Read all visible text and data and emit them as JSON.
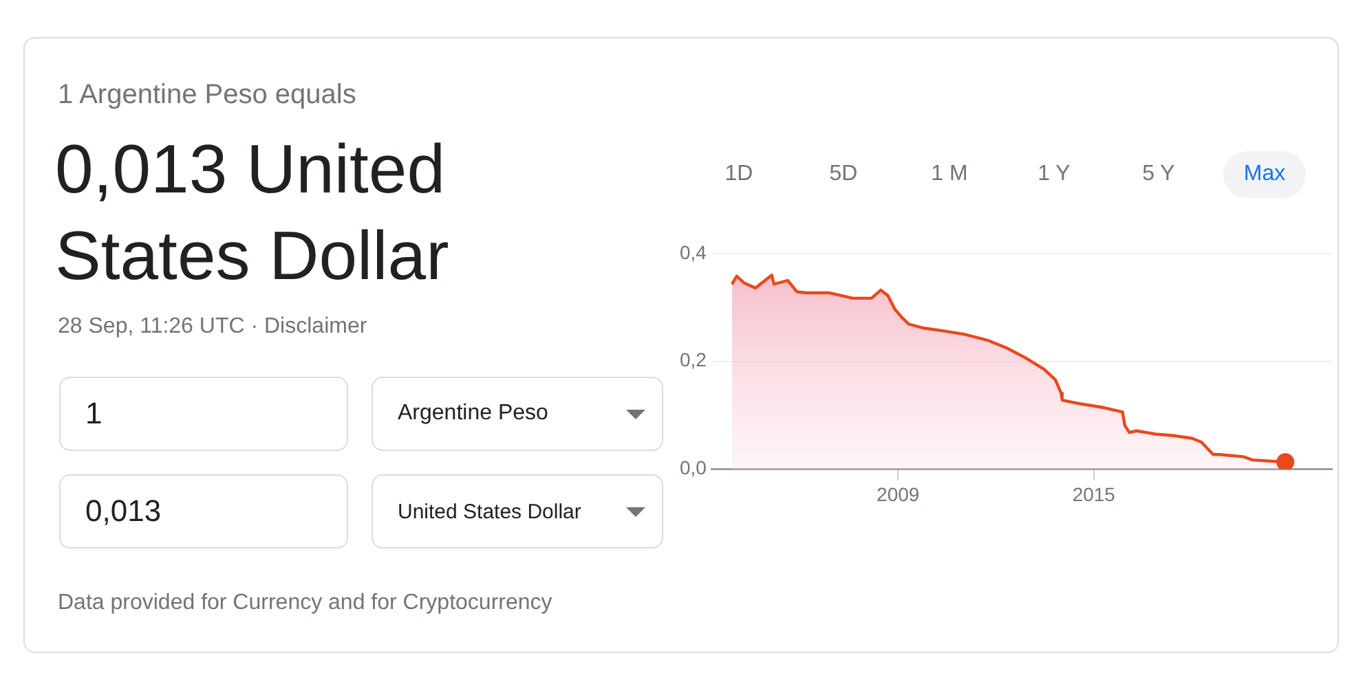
{
  "chart_data": {
    "type": "area",
    "title": "1 Argentine Peso equals",
    "subtitle": "0,013 United States Dollar",
    "annotations": [
      "28 Sep, 11:26 UTC · Disclaimer",
      "1",
      "0,013",
      "Argentine Peso",
      "United States Dollar",
      "1D",
      "5D",
      "1 M",
      "1 Y",
      "5 Y",
      "Max",
      "Data provided for Currency and for Cryptocurrency"
    ],
    "xlim": [
      2003.3,
      2022.3
    ],
    "xticks": [
      2009,
      2015
    ],
    "ylim": [
      0,
      0.4
    ],
    "yticks": [
      {
        "value": 0,
        "label": "0,0"
      },
      {
        "value": 0.2,
        "label": "0,2"
      },
      {
        "value": 0.4,
        "label": "0,4"
      }
    ],
    "grid": "y",
    "series": [
      {
        "color": "#e8491d",
        "x": [
          2003.91,
          2004.06,
          2004.27,
          2004.63,
          2005.13,
          2005.2,
          2005.62,
          2005.9,
          2006.19,
          2006.9,
          2007.62,
          2008.19,
          2008.47,
          2008.69,
          2008.9,
          2009.11,
          2009.33,
          2009.75,
          2010.32,
          2011.04,
          2011.75,
          2012.32,
          2012.89,
          2013.46,
          2013.82,
          2014.0,
          2014.03,
          2014.6,
          2015.31,
          2015.88,
          2015.95,
          2016.09,
          2016.31,
          2016.88,
          2017.45,
          2018.02,
          2018.3,
          2018.66,
          2018.87,
          2019.58,
          2019.87,
          2020.87
        ],
        "values": [
          0.343,
          0.358,
          0.346,
          0.336,
          0.36,
          0.343,
          0.35,
          0.329,
          0.327,
          0.327,
          0.317,
          0.317,
          0.332,
          0.322,
          0.297,
          0.282,
          0.269,
          0.262,
          0.257,
          0.25,
          0.239,
          0.225,
          0.207,
          0.186,
          0.166,
          0.141,
          0.128,
          0.121,
          0.114,
          0.106,
          0.081,
          0.068,
          0.071,
          0.065,
          0.062,
          0.057,
          0.05,
          0.027,
          0.027,
          0.023,
          0.017,
          0.013
        ]
      },
      {
        "type": "scatter",
        "color": "#e8491d",
        "marker": "circle",
        "x": [
          2020.87
        ],
        "values": [
          0.013
        ]
      }
    ]
  }
}
